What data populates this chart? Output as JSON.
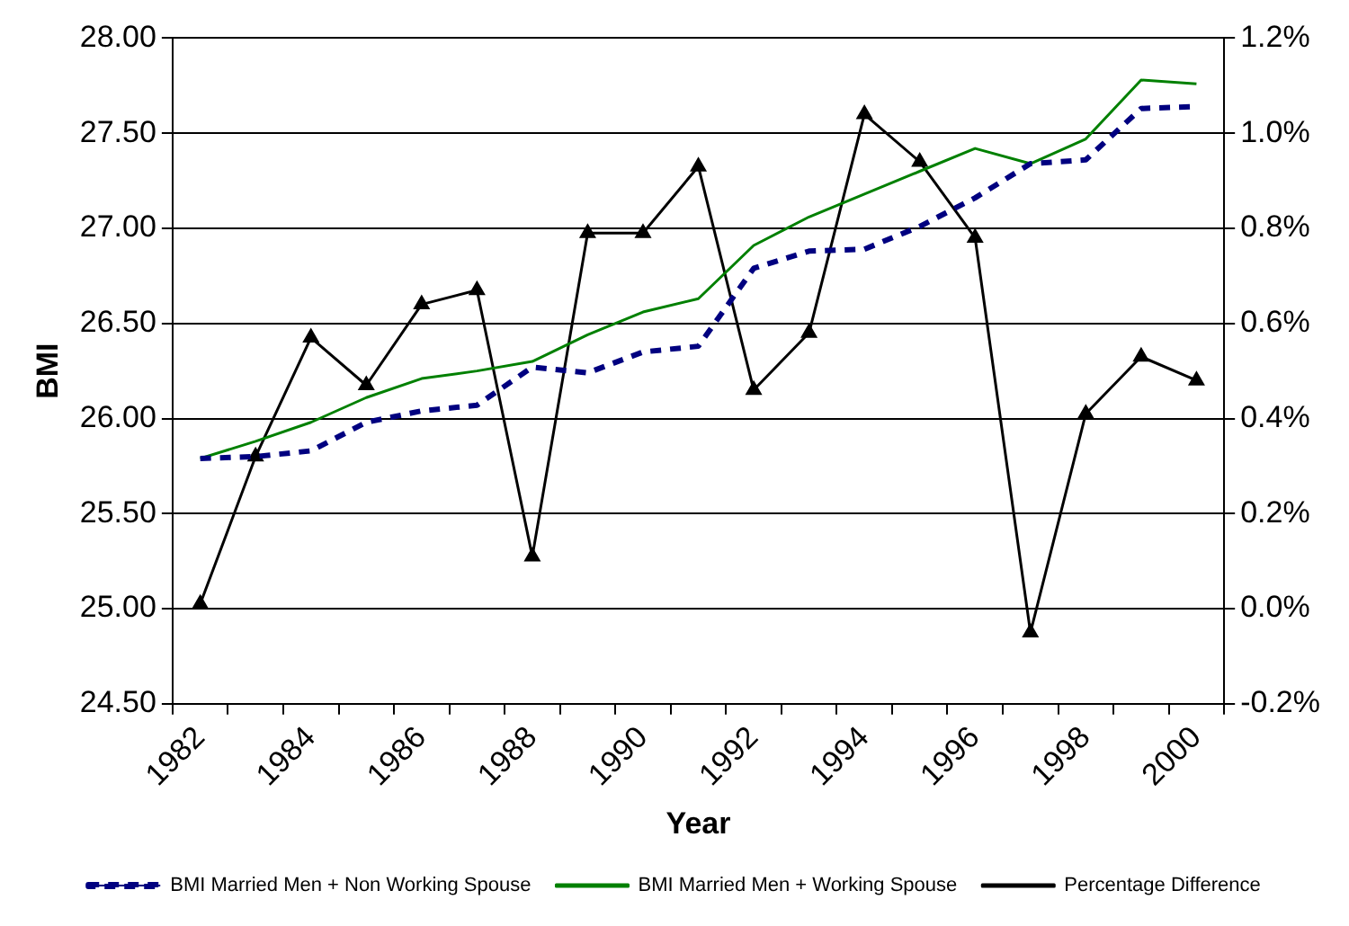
{
  "chart_data": {
    "type": "line",
    "xlabel": "Year",
    "ylabel": "BMI",
    "categories": [
      "1982",
      null,
      "1984",
      null,
      "1986",
      null,
      "1988",
      null,
      "1990",
      null,
      "1992",
      null,
      "1994",
      null,
      "1996",
      null,
      "1998",
      null,
      "2000"
    ],
    "series": [
      {
        "name": "BMI Married Men + Non Working Spouse",
        "color": "#000080",
        "line_style": "dashed",
        "marker": "none",
        "values": [
          25.79,
          25.8,
          25.83,
          25.98,
          26.04,
          26.07,
          26.27,
          26.24,
          26.35,
          26.38,
          26.79,
          26.88,
          26.89,
          27.01,
          27.16,
          27.34,
          27.36,
          27.63,
          27.64
        ]
      },
      {
        "name": "BMI Married Men + Working Spouse",
        "color": "#008000",
        "line_style": "solid",
        "marker": "none",
        "values": [
          25.79,
          25.88,
          25.98,
          26.11,
          26.21,
          26.25,
          26.3,
          26.44,
          26.56,
          26.63,
          26.91,
          27.06,
          27.18,
          27.3,
          27.42,
          27.34,
          27.47,
          27.78,
          27.76
        ]
      },
      {
        "name": "Percentage Difference",
        "color": "#000000",
        "line_style": "solid",
        "marker": "triangle",
        "axis": "y2",
        "values": [
          0.01,
          0.32,
          0.57,
          0.47,
          0.64,
          0.67,
          0.11,
          0.79,
          0.79,
          0.93,
          0.46,
          0.58,
          1.04,
          0.94,
          0.78,
          -0.05,
          0.41,
          0.53,
          0.48
        ]
      }
    ],
    "ylim": [
      24.5,
      28
    ],
    "yticks": [
      {
        "value": 24.5,
        "label": "24.50"
      },
      {
        "value": 25,
        "label": "25.00"
      },
      {
        "value": 25.5,
        "label": "25.50"
      },
      {
        "value": 26,
        "label": "26.00"
      },
      {
        "value": 26.5,
        "label": "26.50"
      },
      {
        "value": 27,
        "label": "27.00"
      },
      {
        "value": 27.5,
        "label": "27.50"
      },
      {
        "value": 28,
        "label": "28.00"
      }
    ],
    "y2lim": [
      -0.2,
      1.2
    ],
    "y2ticks": [
      {
        "value": -0.2,
        "label": "-0.2%"
      },
      {
        "value": 0,
        "label": "0.0%"
      },
      {
        "value": 0.2,
        "label": "0.2%"
      },
      {
        "value": 0.4,
        "label": "0.4%"
      },
      {
        "value": 0.6,
        "label": "0.6%"
      },
      {
        "value": 0.8,
        "label": "0.8%"
      },
      {
        "value": 1,
        "label": "1.0%"
      },
      {
        "value": 1.2,
        "label": "1.2%"
      }
    ],
    "grid": "y",
    "legend": "bottom"
  }
}
